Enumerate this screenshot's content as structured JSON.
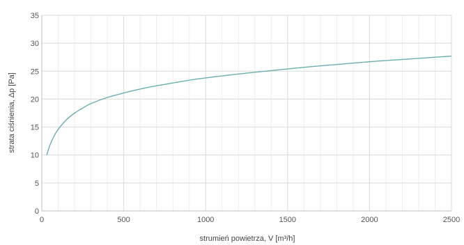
{
  "chart_data": {
    "type": "line",
    "title": "",
    "xlabel": "strumień powietrza, V [m³/h]",
    "ylabel": "strata ciśnienia, Δp [Pa]",
    "xlim": [
      0,
      2500
    ],
    "ylim": [
      0,
      35
    ],
    "x_ticks": [
      0,
      500,
      1000,
      1500,
      2000,
      2500
    ],
    "y_ticks": [
      0,
      5,
      10,
      15,
      20,
      25,
      30,
      35
    ],
    "x_tick_labels": [
      "0",
      "500",
      "1000",
      "1500",
      "2000",
      "2500"
    ],
    "y_tick_labels": [
      "0",
      "5",
      "10",
      "15",
      "20",
      "25",
      "30",
      "35"
    ],
    "grid": true,
    "line_color": "#6aaeb0",
    "series": [
      {
        "x": [
          30,
          50,
          75,
          100,
          150,
          200,
          250,
          300,
          400,
          500,
          600,
          700,
          800,
          900,
          1000,
          1200,
          1400,
          1600,
          1800,
          2000,
          2200,
          2400,
          2500
        ],
        "values": [
          10.0,
          11.8,
          13.4,
          14.6,
          16.3,
          17.5,
          18.4,
          19.2,
          20.3,
          21.1,
          21.8,
          22.4,
          22.9,
          23.4,
          23.8,
          24.5,
          25.1,
          25.7,
          26.2,
          26.7,
          27.1,
          27.5,
          27.7
        ]
      }
    ]
  }
}
